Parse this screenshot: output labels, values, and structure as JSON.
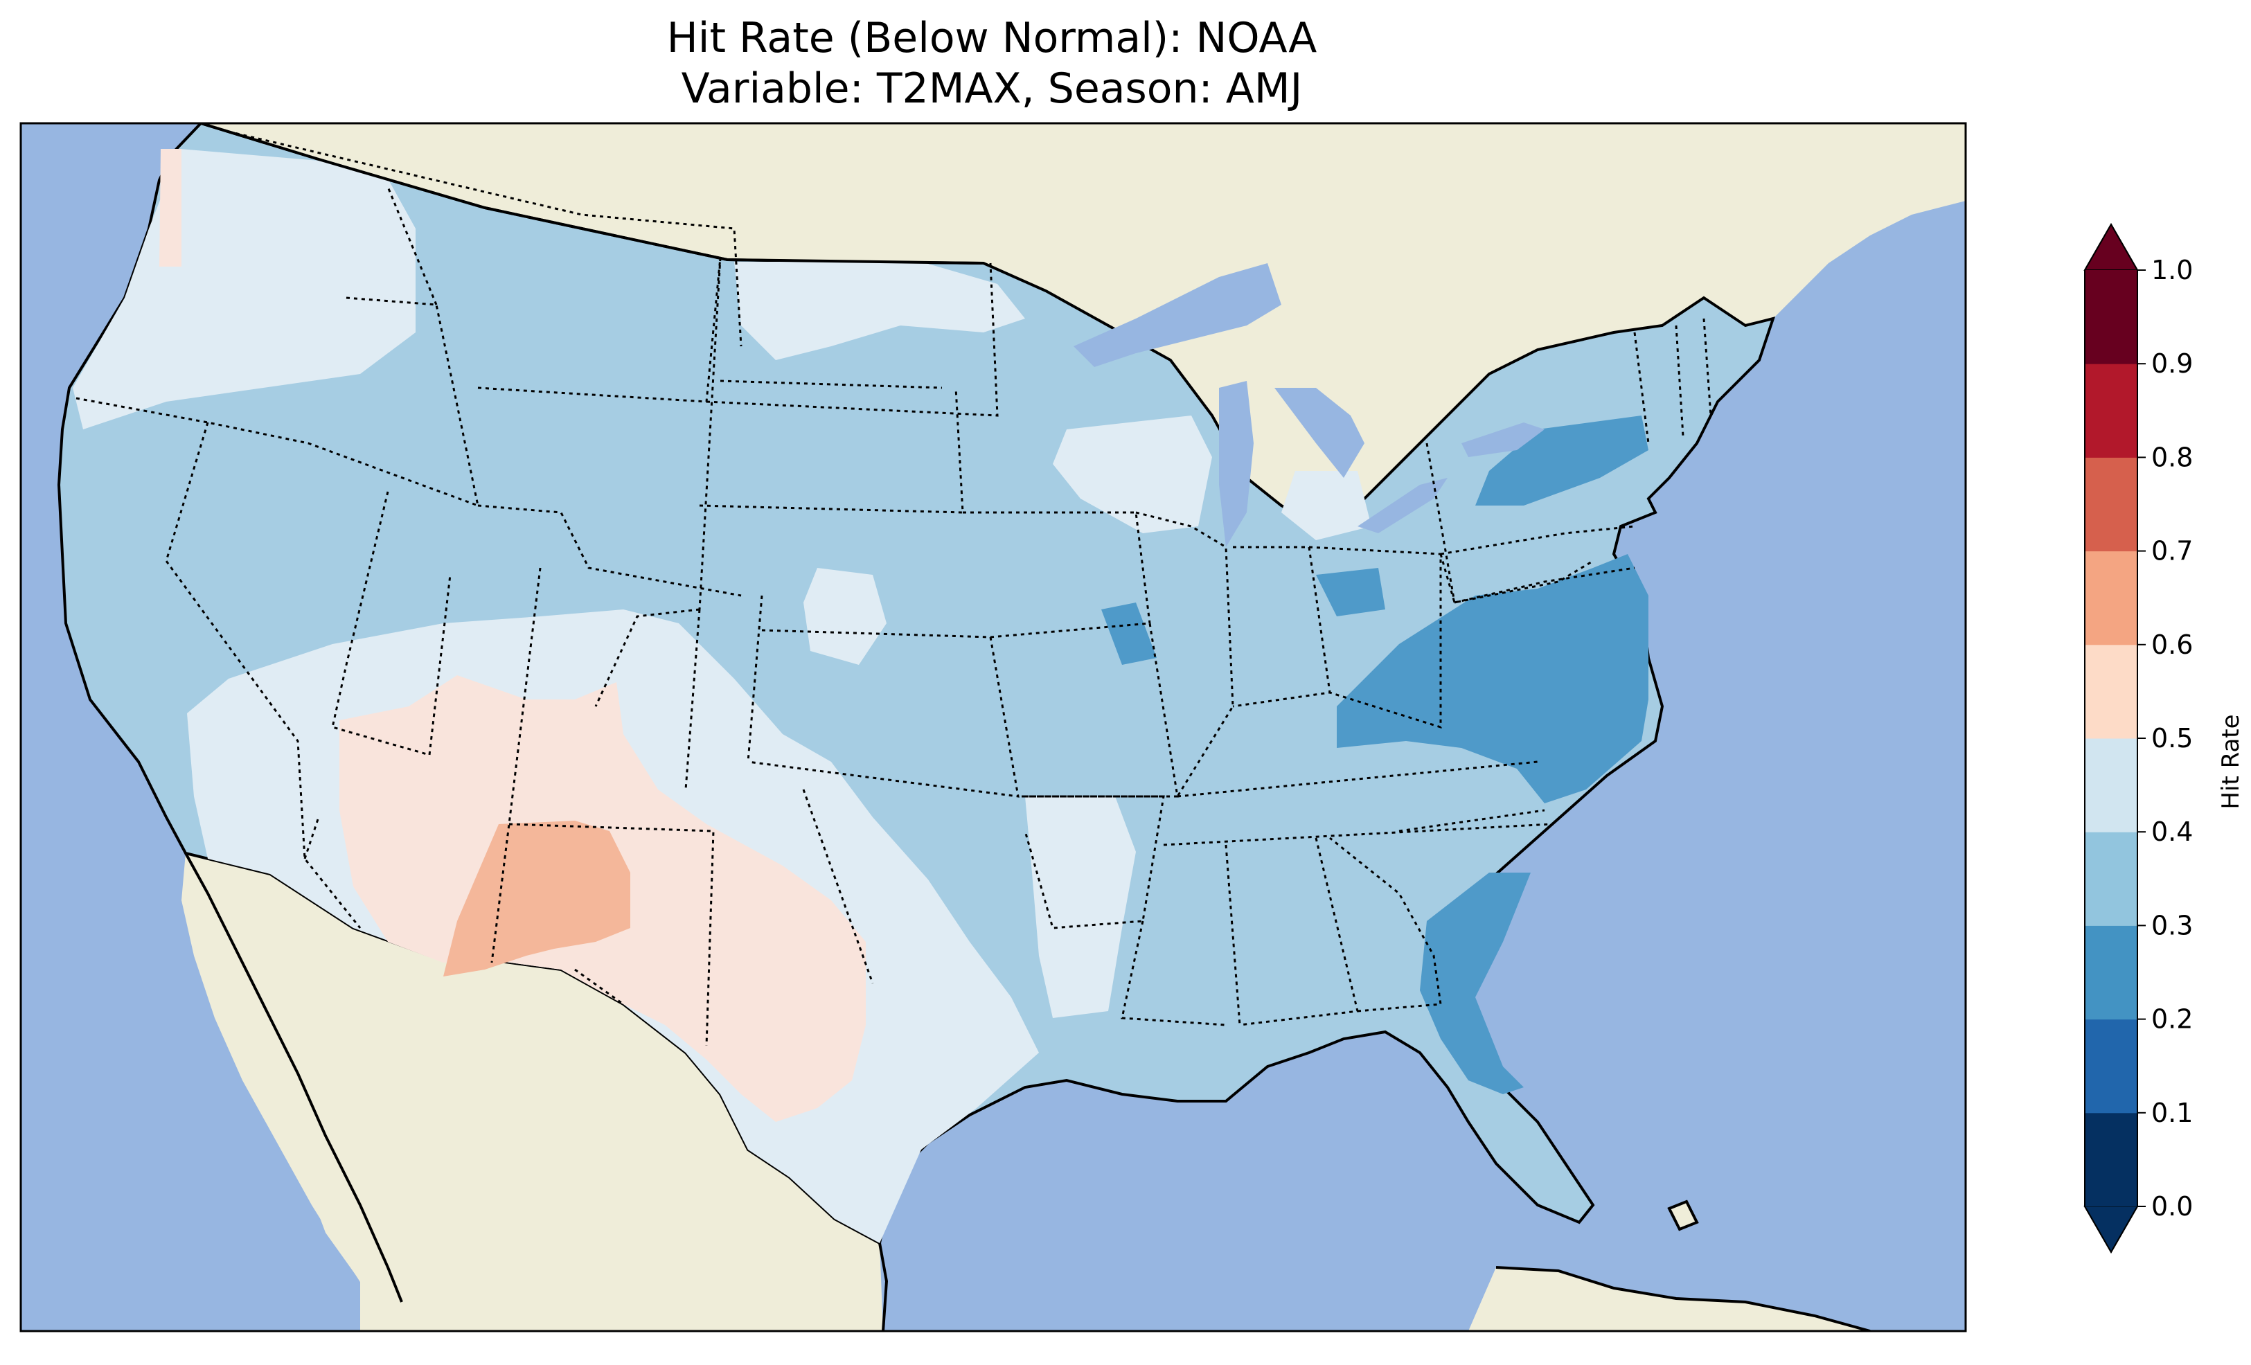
{
  "title_line1": "Hit Rate (Below Normal): NOAA",
  "title_line2": "Variable: T2MAX, Season: AMJ",
  "colorbar": {
    "label": "Hit Rate",
    "ticks": [
      "0.0",
      "0.1",
      "0.2",
      "0.3",
      "0.4",
      "0.5",
      "0.6",
      "0.7",
      "0.8",
      "0.9",
      "1.0"
    ],
    "colors": [
      "#053061",
      "#2166ac",
      "#4393c3",
      "#92c5de",
      "#d1e5f0",
      "#fddbc7",
      "#f4a582",
      "#d6604d",
      "#b2182b",
      "#67001f"
    ],
    "under_color": "#053061",
    "over_color": "#67001f"
  },
  "map": {
    "region": "Contiguous United States",
    "ocean_color": "#97b6e1",
    "land_color": "#efedd9",
    "rendered_class_colors": {
      "0.2-0.3": "#4f9ac9",
      "0.3-0.4": "#a6cde3",
      "0.4-0.5": "#e0ecf4",
      "0.5-0.6": "#f9e4dc",
      "0.6-0.7": "#f4b79a"
    }
  }
}
